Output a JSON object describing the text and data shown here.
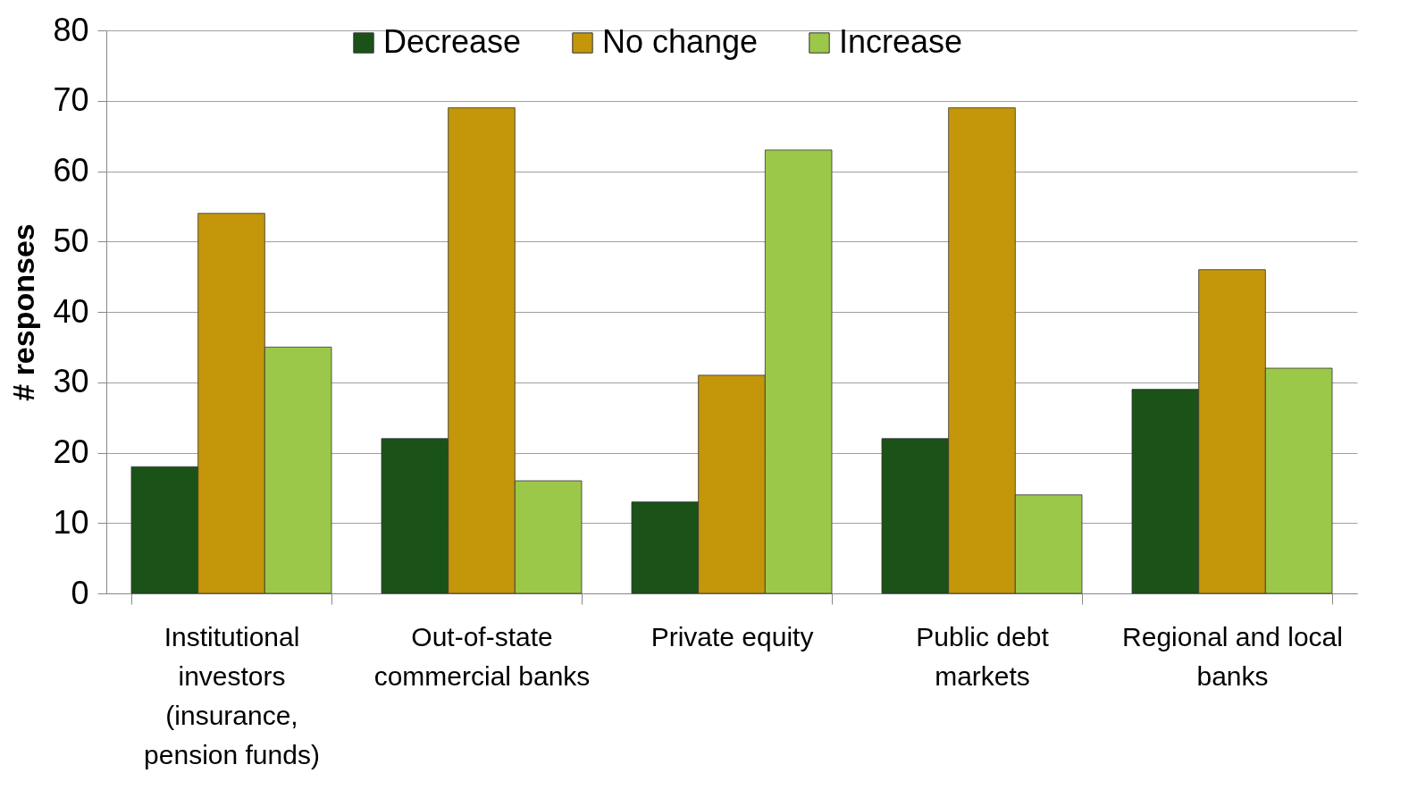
{
  "chart_data": {
    "type": "bar",
    "ylabel": "# responses",
    "categories": [
      "Institutional investors (insurance, pension funds)",
      "Out-of-state commercial banks",
      "Private equity",
      "Public debt markets",
      "Regional and local banks"
    ],
    "series": [
      {
        "name": "Decrease",
        "color": "#1a5218",
        "values": [
          18,
          22,
          13,
          22,
          29
        ]
      },
      {
        "name": "No change",
        "color": "#c4960a",
        "values": [
          54,
          69,
          31,
          69,
          46
        ]
      },
      {
        "name": "Increase",
        "color": "#9cc84a",
        "values": [
          35,
          16,
          63,
          14,
          32
        ]
      }
    ],
    "ylim": [
      0,
      80
    ],
    "yticks": [
      0,
      10,
      20,
      30,
      40,
      50,
      60,
      70,
      80
    ],
    "grid": "y",
    "legend": "top"
  }
}
